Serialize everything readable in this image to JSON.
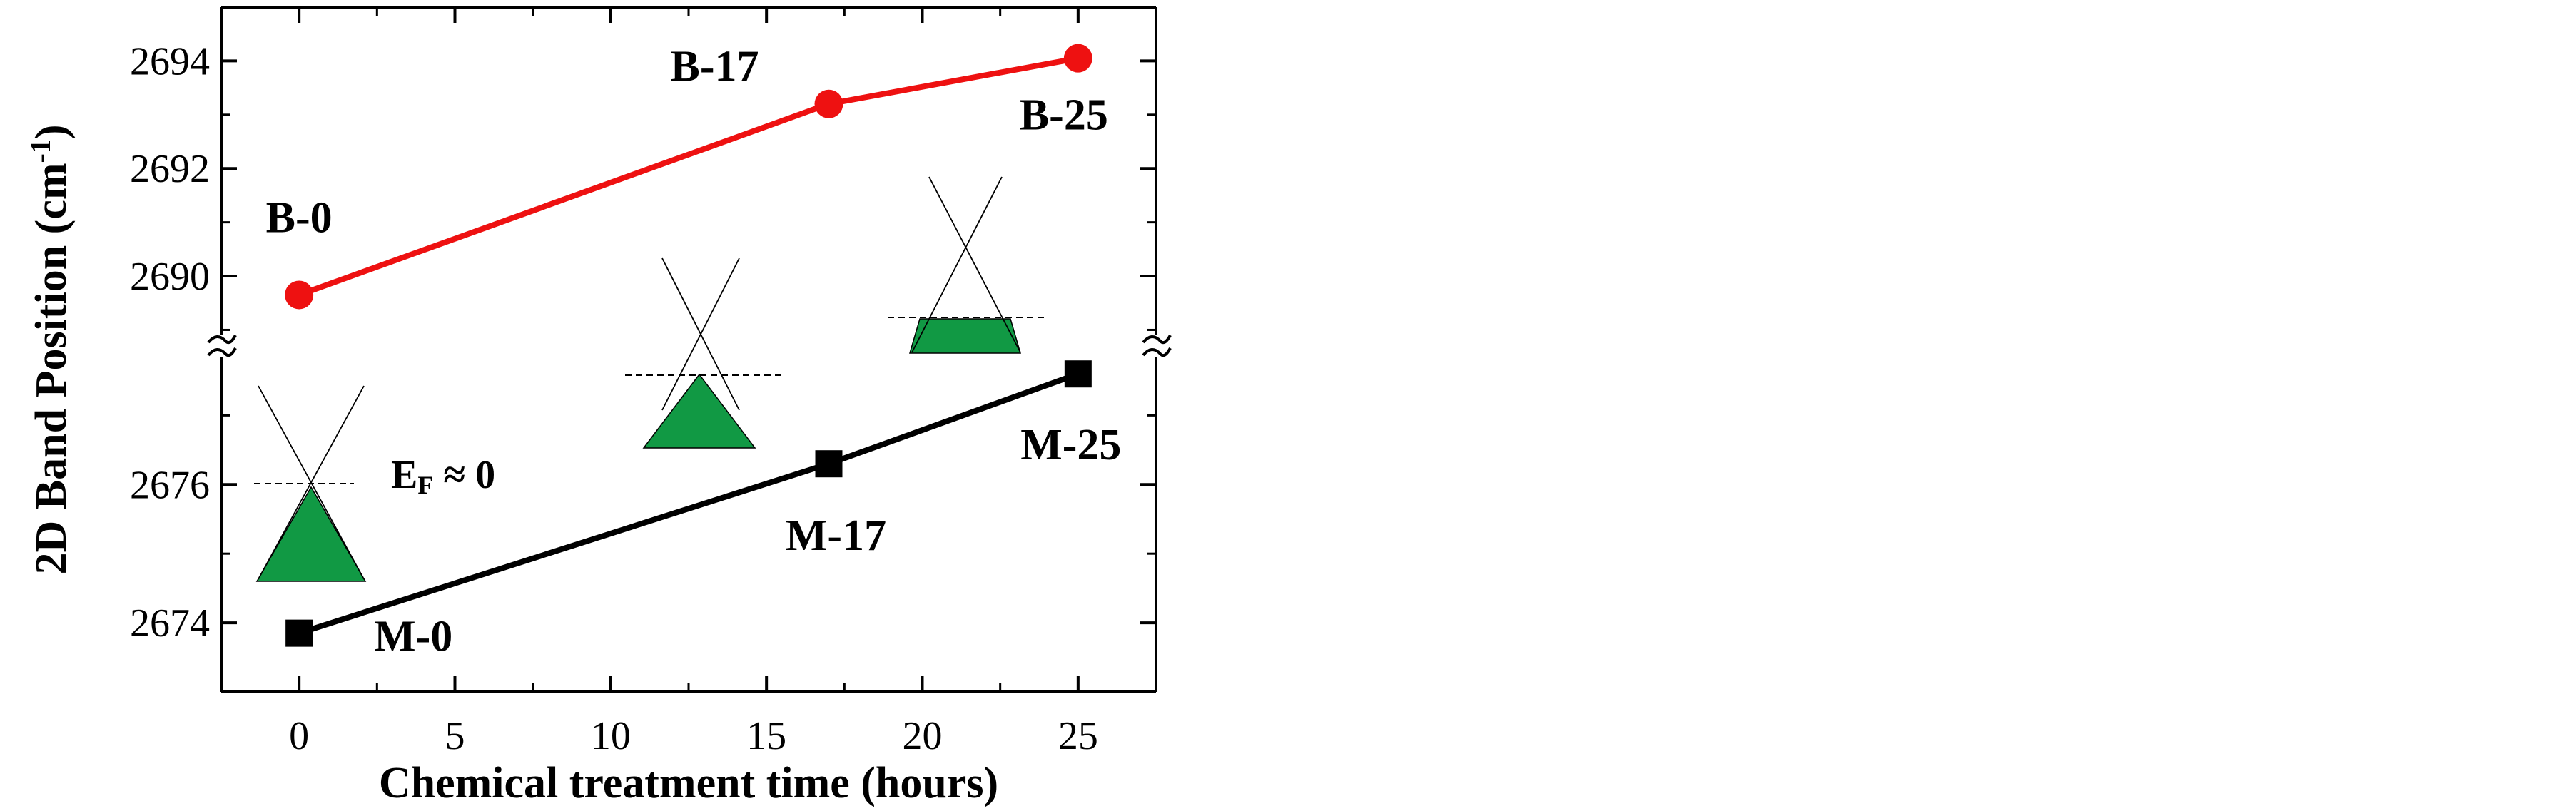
{
  "chart_data": {
    "type": "line",
    "xlabel": "Chemical treatment time (hours)",
    "ylabel_main": "2D Band Position (cm",
    "ylabel_sup": "-1",
    "ylabel_close": ")",
    "xlim": [
      -2.5,
      27.5
    ],
    "x_ticks": [
      0,
      5,
      10,
      15,
      20,
      25
    ],
    "x_tick_labels": [
      "0",
      "5",
      "10",
      "15",
      "20",
      "25"
    ],
    "broken_y_axis": true,
    "upper_ylim": [
      2688.9,
      2695
    ],
    "upper_y_ticks": [
      2690,
      2692,
      2694
    ],
    "upper_y_tick_labels": [
      "2690",
      "2692",
      "2694"
    ],
    "lower_ylim": [
      2673.0,
      2677.85
    ],
    "lower_y_ticks": [
      2674,
      2676
    ],
    "lower_y_tick_labels": [
      "2674",
      "2676"
    ],
    "grid": false,
    "series": [
      {
        "color": "#ee1111",
        "marker": "circle",
        "panel": "upper",
        "x": [
          0,
          17,
          25
        ],
        "y": [
          2689.65,
          2693.2,
          2694.05
        ],
        "point_labels": [
          "B-0",
          "B-17",
          "B-25"
        ]
      },
      {
        "color": "#000000",
        "marker": "square",
        "panel": "lower",
        "x": [
          0,
          17,
          25
        ],
        "y": [
          2673.85,
          2676.3,
          2677.6
        ],
        "point_labels": [
          "M-0",
          "M-17",
          "M-25"
        ]
      }
    ],
    "annotations": {
      "fermi_main": "E",
      "fermi_sub": "F",
      "fermi_tail": " ≈ 0"
    },
    "inset_cone_fill": "#119944"
  }
}
